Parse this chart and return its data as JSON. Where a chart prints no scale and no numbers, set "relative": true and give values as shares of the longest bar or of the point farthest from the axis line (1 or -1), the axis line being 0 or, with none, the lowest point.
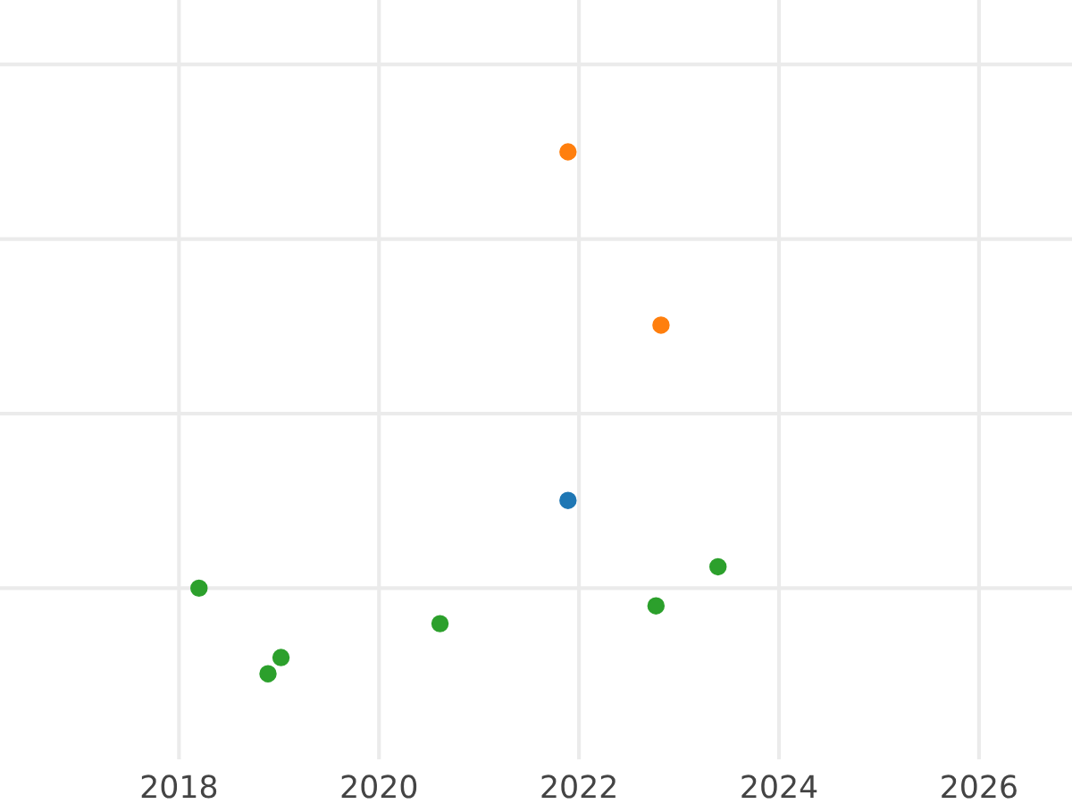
{
  "chart_data": {
    "type": "scatter",
    "relative": true,
    "xlim": [
      2016.21,
      2026.93
    ],
    "xticks": [
      2018,
      2020,
      2022,
      2024,
      2026
    ],
    "grid": true,
    "tick_labels": "x",
    "marker": "circle",
    "series": [
      {
        "color": "#ff7f0e",
        "x": [
          2021.89,
          2022.82
        ],
        "values": [
          1,
          0.668
        ]
      },
      {
        "color": "#1f77b4",
        "x": [
          2021.89
        ],
        "values": [
          0.332
        ]
      },
      {
        "color": "#2ca02c",
        "x": [
          2018.2,
          2018.89,
          2019.02,
          2020.61,
          2022.77,
          2023.39
        ],
        "values": [
          0.164,
          0,
          0.031,
          0.096,
          0.13,
          0.205
        ]
      }
    ]
  }
}
